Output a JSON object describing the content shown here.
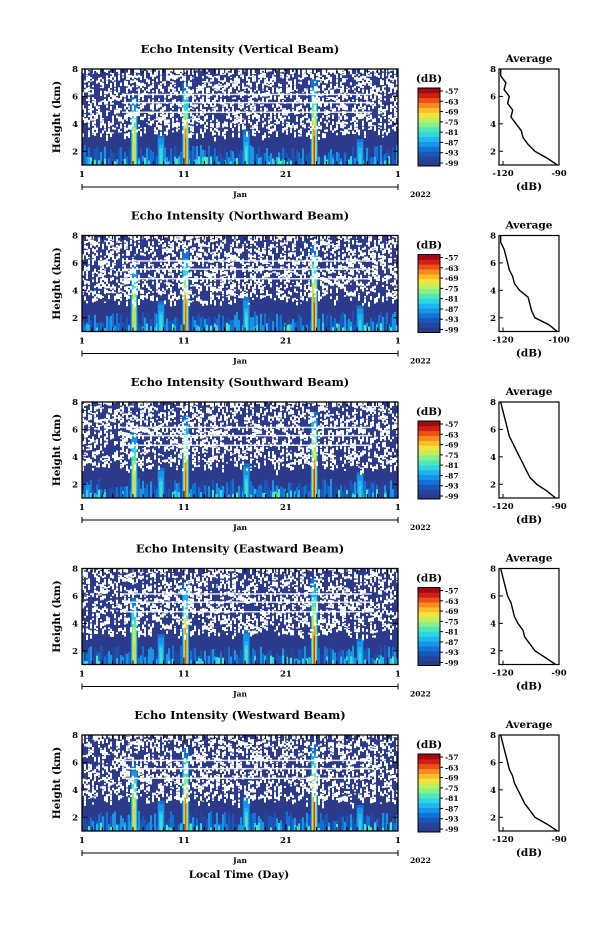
{
  "figure": {
    "xlabel": "Local Time (Day)"
  },
  "colormap": [
    "#2b3a8a",
    "#23459c",
    "#1a56b8",
    "#1272d6",
    "#1596e6",
    "#1eb6ee",
    "#2fd5e0",
    "#4fe7b8",
    "#86f08a",
    "#c0ef5e",
    "#f2e43d",
    "#fbbd2a",
    "#f78b1f",
    "#ec5218",
    "#cf2016",
    "#a50a12"
  ],
  "chart_data": [
    {
      "type": "heatmap",
      "title": "Echo Intensity (Vertical Beam)",
      "ylabel": "Height (km)",
      "yticks": [
        "2",
        "4",
        "6",
        "8"
      ],
      "ylim": [
        1,
        8
      ],
      "xticks": [
        "1",
        "11",
        "21",
        "1"
      ],
      "xticks_sub": [
        "Jan",
        "2022"
      ],
      "colorbar": {
        "unit": "(dB)",
        "ticks": [
          "-57",
          "-63",
          "-69",
          "-75",
          "-81",
          "-87",
          "-93",
          "-99"
        ]
      },
      "average": {
        "title": "Average",
        "xlabel": "(dB)",
        "xticks": [
          "-120",
          "-90"
        ],
        "yticks": [
          "2",
          "4",
          "6",
          "8"
        ],
        "xlim": [
          -125,
          -90
        ],
        "height_km": [
          1,
          1.5,
          2,
          2.5,
          3,
          3.5,
          4,
          4.5,
          5,
          5.5,
          6,
          6.5,
          7,
          7.5,
          8
        ],
        "db": [
          -91,
          -97,
          -104,
          -108,
          -111,
          -112,
          -115,
          -118,
          -117,
          -120,
          -119,
          -122,
          -121,
          -124,
          -124
        ]
      }
    },
    {
      "type": "heatmap",
      "title": "Echo Intensity (Northward Beam)",
      "ylabel": "Height (km)",
      "yticks": [
        "2",
        "4",
        "6",
        "8"
      ],
      "ylim": [
        1,
        8
      ],
      "xticks": [
        "1",
        "11",
        "21",
        "1"
      ],
      "xticks_sub": [
        "Jan",
        "2022"
      ],
      "colorbar": {
        "unit": "(dB)",
        "ticks": [
          "-57",
          "-63",
          "-69",
          "-75",
          "-81",
          "-87",
          "-93",
          "-99"
        ]
      },
      "average": {
        "title": "Average",
        "xlabel": "(dB)",
        "xticks": [
          "-120",
          "-100"
        ],
        "yticks": [
          "2",
          "4",
          "6",
          "8"
        ],
        "xlim": [
          -125,
          -90
        ],
        "height_km": [
          1,
          1.5,
          2,
          2.5,
          3,
          3.5,
          4,
          4.5,
          5,
          5.5,
          6,
          6.5,
          7,
          7.5,
          8
        ],
        "db": [
          -91,
          -96,
          -104,
          -106,
          -107,
          -108,
          -113,
          -116,
          -117,
          -119,
          -120,
          -121,
          -122,
          -124,
          -124
        ]
      }
    },
    {
      "type": "heatmap",
      "title": "Echo Intensity (Southward Beam)",
      "ylabel": "Height (km)",
      "yticks": [
        "2",
        "4",
        "6",
        "8"
      ],
      "ylim": [
        1,
        8
      ],
      "xticks": [
        "1",
        "11",
        "21",
        "1"
      ],
      "xticks_sub": [
        "Jan",
        "2022"
      ],
      "colorbar": {
        "unit": "(dB)",
        "ticks": [
          "-57",
          "-63",
          "-69",
          "-75",
          "-81",
          "-87",
          "-93",
          "-99"
        ]
      },
      "average": {
        "title": "Average",
        "xlabel": "(dB)",
        "xticks": [
          "-120",
          "-90"
        ],
        "yticks": [
          "2",
          "4",
          "6",
          "8"
        ],
        "xlim": [
          -125,
          -90
        ],
        "height_km": [
          1,
          1.5,
          2,
          2.5,
          3,
          3.5,
          4,
          4.5,
          5,
          5.5,
          6,
          6.5,
          7,
          7.5,
          8
        ],
        "db": [
          -92,
          -97,
          -103,
          -107,
          -109,
          -111,
          -113,
          -115,
          -117,
          -119,
          -120,
          -121,
          -122,
          -123,
          -124
        ]
      }
    },
    {
      "type": "heatmap",
      "title": "Echo Intensity (Eastward Beam)",
      "ylabel": "Height (km)",
      "yticks": [
        "2",
        "4",
        "6",
        "8"
      ],
      "ylim": [
        1,
        8
      ],
      "xticks": [
        "1",
        "11",
        "21",
        "1"
      ],
      "xticks_sub": [
        "Jan",
        "2022"
      ],
      "colorbar": {
        "unit": "(dB)",
        "ticks": [
          "-57",
          "-63",
          "-69",
          "-75",
          "-81",
          "-87",
          "-93",
          "-99"
        ]
      },
      "average": {
        "title": "Average",
        "xlabel": "(dB)",
        "xticks": [
          "-120",
          "-90"
        ],
        "yticks": [
          "2",
          "4",
          "6",
          "8"
        ],
        "xlim": [
          -125,
          -90
        ],
        "height_km": [
          1,
          1.5,
          2,
          2.5,
          3,
          3.5,
          4,
          4.5,
          5,
          5.5,
          6,
          6.5,
          7,
          7.5,
          8
        ],
        "db": [
          -92,
          -98,
          -104,
          -107,
          -110,
          -111,
          -114,
          -116,
          -117,
          -118,
          -120,
          -121,
          -122,
          -123,
          -124
        ]
      }
    },
    {
      "type": "heatmap",
      "title": "Echo Intensity (Westward Beam)",
      "ylabel": "Height (km)",
      "yticks": [
        "2",
        "4",
        "6",
        "8"
      ],
      "ylim": [
        1,
        8
      ],
      "xticks": [
        "1",
        "11",
        "21",
        "1"
      ],
      "xticks_sub": [
        "Jan",
        "2022"
      ],
      "colorbar": {
        "unit": "(dB)",
        "ticks": [
          "-57",
          "-63",
          "-69",
          "-75",
          "-81",
          "-87",
          "-93",
          "-99"
        ]
      },
      "average": {
        "title": "Average",
        "xlabel": "(dB)",
        "xticks": [
          "-120",
          "-90"
        ],
        "yticks": [
          "2",
          "4",
          "6",
          "8"
        ],
        "xlim": [
          -125,
          -90
        ],
        "height_km": [
          1,
          1.5,
          2,
          2.5,
          3,
          3.5,
          4,
          4.5,
          5,
          5.5,
          6,
          6.5,
          7,
          7.5,
          8
        ],
        "db": [
          -91,
          -97,
          -104,
          -107,
          -110,
          -112,
          -114,
          -116,
          -117,
          -119,
          -120,
          -121,
          -122,
          -123,
          -124
        ]
      }
    }
  ]
}
